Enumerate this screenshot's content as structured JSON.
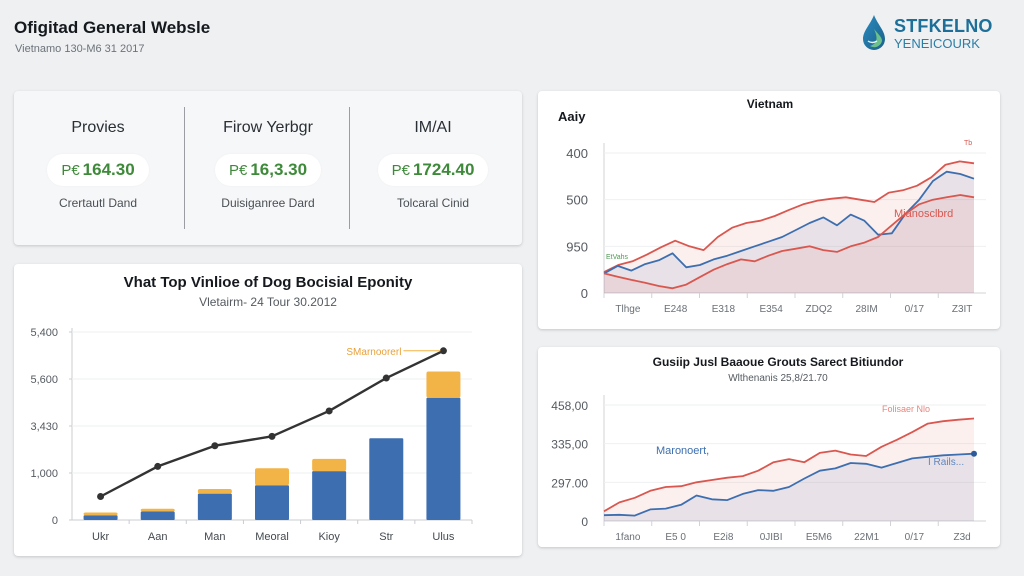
{
  "header": {
    "title": "Ofigitad General Websle",
    "subtitle": "Vietnamo 130-M6 31 2017"
  },
  "logo": {
    "icon": "water-drop-icon",
    "main": "STFKELNO",
    "sub": "YENEICOURK"
  },
  "kpis": [
    {
      "title": "Provies",
      "currency": "P€",
      "value": "164.30",
      "caption": "Crertautl Dand"
    },
    {
      "title": "Firow Yerbgr",
      "currency": "P€",
      "value": "16,3.30",
      "caption": "Duisiganree Dard"
    },
    {
      "title": "IM/AI",
      "currency": "P€",
      "value": "1724.40",
      "caption": "Tolcaral Cinid"
    }
  ],
  "colors": {
    "blue": "#3d6fb0",
    "orange": "#f3b447",
    "red": "#d9574f",
    "dark_line": "#333333",
    "kpi_green": "#3e8a3a"
  },
  "chart_data": [
    {
      "id": "bar-line-combo",
      "type": "bar",
      "title": "Vhat Top Vinlioe of Dog Bocisial Eponity",
      "subtitle": "Vletairm- 24 Tour 30.2012",
      "categories": [
        "Ukr",
        "Aan",
        "Man",
        "Meoral",
        "Kioy",
        "Str",
        "Ulus"
      ],
      "ytick_labels": [
        "0",
        "1,000",
        "3,430",
        "5,600",
        "5,400"
      ],
      "ylim": [
        0,
        4
      ],
      "stacked": true,
      "series": [
        {
          "name": "base",
          "color": "#3d6fb0",
          "values": [
            0.1,
            0.18,
            0.56,
            0.74,
            1.04,
            1.74,
            2.6
          ]
        },
        {
          "name": "top",
          "color": "#f3b447",
          "values": [
            0.06,
            0.06,
            0.1,
            0.36,
            0.26,
            0,
            0.56
          ]
        },
        {
          "name": "trend",
          "type": "line",
          "color": "#333333",
          "values": [
            0.5,
            1.14,
            1.58,
            1.78,
            2.32,
            3.02,
            3.6
          ]
        }
      ],
      "annotation": "SMarnoorerl",
      "grid": true
    },
    {
      "id": "top-area-line",
      "type": "area",
      "title": "Vietnam",
      "ylabel": "Aaiy",
      "ytick_labels": [
        "0",
        "950",
        "500",
        "400"
      ],
      "xtick_labels": [
        "Tlhge",
        "E248",
        "E318",
        "E354",
        "ZDQ2",
        "28IM",
        "0/17",
        "Z3IT"
      ],
      "ylim": [
        0,
        3
      ],
      "series": [
        {
          "name": "upper",
          "color": "#d9574f",
          "values": [
            0.45,
            0.6,
            0.68,
            0.82,
            0.98,
            1.12,
            1.0,
            0.92,
            1.2,
            1.4,
            1.5,
            1.55,
            1.65,
            1.78,
            1.9,
            1.98,
            2.02,
            2.05,
            2.0,
            1.95,
            2.15,
            2.2,
            2.3,
            2.48,
            2.75,
            2.82,
            2.78
          ]
        },
        {
          "name": "middle",
          "color": "#3d6fb0",
          "values": [
            0.42,
            0.58,
            0.48,
            0.62,
            0.7,
            0.85,
            0.55,
            0.6,
            0.72,
            0.8,
            0.9,
            1.0,
            1.1,
            1.2,
            1.35,
            1.5,
            1.62,
            1.45,
            1.68,
            1.55,
            1.25,
            1.28,
            1.7,
            2.0,
            2.4,
            2.6,
            2.55,
            2.45
          ]
        },
        {
          "name": "lower",
          "color": "#d9574f",
          "values": [
            0.42,
            0.35,
            0.28,
            0.22,
            0.15,
            0.1,
            0.18,
            0.34,
            0.5,
            0.62,
            0.72,
            0.68,
            0.8,
            0.9,
            0.95,
            1.0,
            0.92,
            0.88,
            1.0,
            1.08,
            1.2,
            1.45,
            1.7,
            1.9,
            2.0,
            2.05,
            2.1,
            2.05
          ]
        }
      ],
      "annotations": [
        "Mianosclbrd",
        "EtVahs",
        "Tb"
      ],
      "grid": true
    },
    {
      "id": "bottom-area-line",
      "type": "area",
      "title": "Gusiip Jusl Baaoue Grouts Sarect Bitiundor",
      "subtitle": "Wlthenanis 25,8/21.70",
      "ytick_labels": [
        "0",
        "297.00",
        "335,00",
        "458,00"
      ],
      "xtick_labels": [
        "1fano",
        "E5 0",
        "E2i8",
        "0JIBI",
        "E5M6",
        "22M1",
        "0/17",
        "Z3d"
      ],
      "ylim": [
        0,
        3
      ],
      "series": [
        {
          "name": "red",
          "color": "#d9574f",
          "values": [
            0.25,
            0.48,
            0.6,
            0.78,
            0.88,
            0.9,
            1.0,
            1.06,
            1.12,
            1.16,
            1.3,
            1.52,
            1.6,
            1.52,
            1.76,
            1.82,
            1.72,
            1.68,
            1.92,
            2.1,
            2.3,
            2.52,
            2.58,
            2.62,
            2.65
          ]
        },
        {
          "name": "blue",
          "color": "#3d6fb0",
          "values": [
            0.15,
            0.16,
            0.14,
            0.3,
            0.32,
            0.42,
            0.66,
            0.56,
            0.54,
            0.7,
            0.8,
            0.78,
            0.88,
            1.1,
            1.3,
            1.36,
            1.5,
            1.48,
            1.38,
            1.5,
            1.62,
            1.66,
            1.7,
            1.72,
            1.74
          ]
        }
      ],
      "annotations": [
        "Maronoert,",
        "Folisaer Nlo",
        "I Rails..."
      ],
      "grid": true
    }
  ]
}
